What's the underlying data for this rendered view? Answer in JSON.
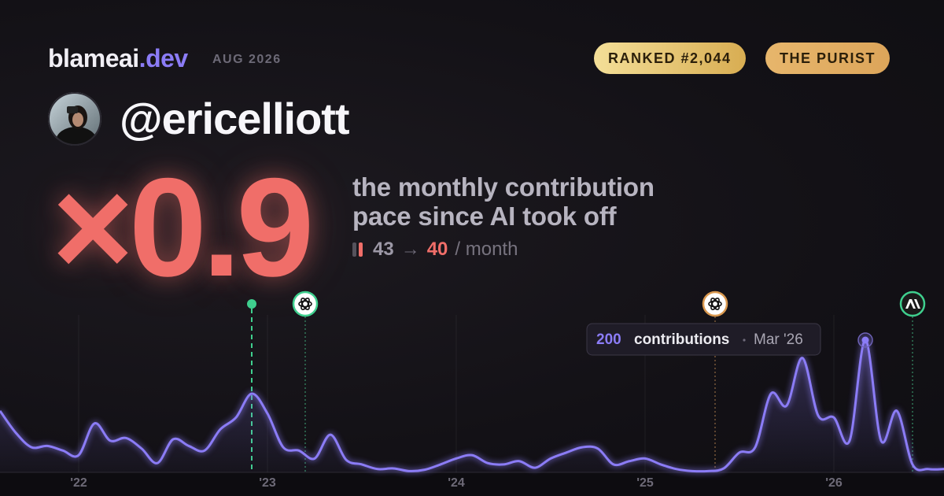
{
  "brand": {
    "name": "blameai",
    "tld": ".dev"
  },
  "period": "AUG 2026",
  "badges": [
    "RANKED #2,044",
    "THE PURIST"
  ],
  "handle": "@ericelliott",
  "multiplier": "×0.9",
  "description": [
    "the monthly contribution",
    "pace since AI took off"
  ],
  "pace": {
    "before": 43,
    "arrow": "→",
    "after": 40,
    "unit": "/ month"
  },
  "chart_data": {
    "type": "area",
    "categories": [
      null,
      null,
      null,
      null,
      null,
      "'22",
      null,
      null,
      null,
      null,
      null,
      null,
      null,
      null,
      null,
      null,
      null,
      "'23",
      null,
      null,
      null,
      null,
      null,
      null,
      null,
      null,
      null,
      null,
      null,
      "'24",
      null,
      null,
      null,
      null,
      null,
      null,
      null,
      null,
      null,
      null,
      null,
      "'25",
      null,
      null,
      null,
      null,
      null,
      null,
      null,
      null,
      null,
      null,
      null,
      "'26",
      null,
      null,
      null,
      null,
      null,
      null,
      null
    ],
    "series": [
      {
        "name": "contributions",
        "color": "#8b7cf6",
        "values": [
          93,
          60,
          38,
          40,
          33,
          26,
          74,
          48,
          52,
          36,
          14,
          50,
          40,
          33,
          65,
          83,
          119,
          89,
          38,
          33,
          21,
          57,
          19,
          12,
          5,
          6,
          2,
          4,
          12,
          21,
          26,
          14,
          12,
          17,
          7,
          21,
          30,
          38,
          36,
          12,
          17,
          21,
          12,
          5,
          2,
          2,
          6,
          30,
          38,
          119,
          101,
          173,
          86,
          83,
          48,
          200,
          48,
          93,
          12,
          5,
          5
        ]
      }
    ],
    "ylim": [
      0,
      200
    ],
    "grid": true,
    "tooltip": {
      "date": "Mar '26"
    }
  }
}
